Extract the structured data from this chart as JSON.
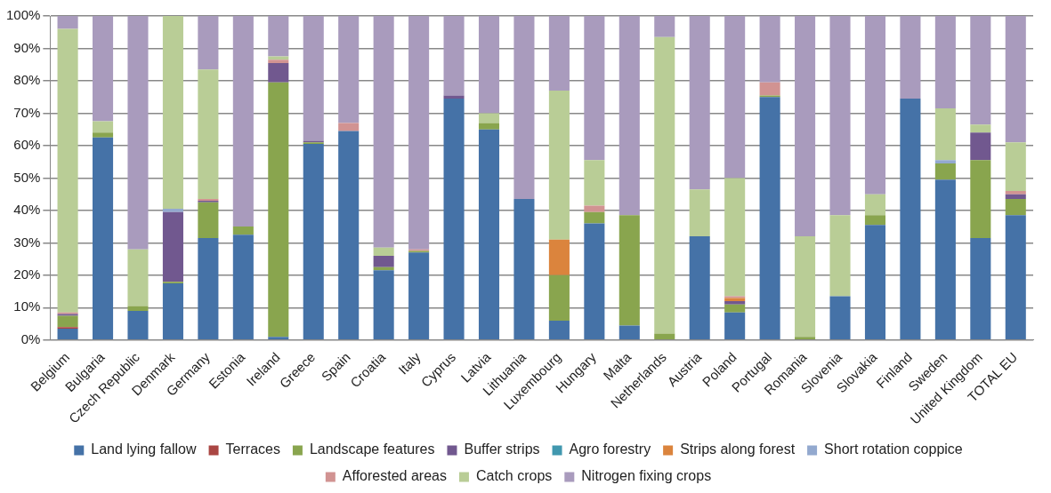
{
  "chart_data": {
    "type": "bar",
    "stacked": true,
    "grid": "y",
    "legend": "bottom",
    "categories": [
      "Belgium",
      "Bulgaria",
      "Czech Republic",
      "Denmark",
      "Germany",
      "Estonia",
      "Ireland",
      "Greece",
      "Spain",
      "Croatia",
      "Italy",
      "Cyprus",
      "Latvia",
      "Lithuania",
      "Luxembourg",
      "Hungary",
      "Malta",
      "Netherlands",
      "Austria",
      "Poland",
      "Portugal",
      "Romania",
      "Slovenia",
      "Slovakia",
      "Finland",
      "Sweden",
      "United Kingdom",
      "TOTAL EU"
    ],
    "ylim": [
      0,
      100
    ],
    "yticks": [
      {
        "value": 0,
        "label": "0%"
      },
      {
        "value": 10,
        "label": "10%"
      },
      {
        "value": 20,
        "label": "20%"
      },
      {
        "value": 30,
        "label": "30%"
      },
      {
        "value": 40,
        "label": "40%"
      },
      {
        "value": 50,
        "label": "50%"
      },
      {
        "value": 60,
        "label": "60%"
      },
      {
        "value": 70,
        "label": "70%"
      },
      {
        "value": 80,
        "label": "80%"
      },
      {
        "value": 90,
        "label": "90%"
      },
      {
        "value": 100,
        "label": "100%"
      }
    ],
    "series": [
      {
        "name": "Land lying fallow",
        "color": "#4572a7",
        "values": [
          3.5,
          62.5,
          9,
          17.5,
          31.5,
          32.5,
          1,
          60.5,
          64.5,
          21.5,
          27,
          74.5,
          65,
          43.5,
          6,
          36,
          4.5,
          0,
          32,
          8.5,
          75,
          0,
          13.5,
          35.5,
          74.5,
          49.5,
          31.5,
          38.5
        ]
      },
      {
        "name": "Terraces",
        "color": "#aa4643",
        "values": [
          0.5,
          0,
          0,
          0,
          0,
          0,
          0,
          0,
          0,
          0,
          0,
          0,
          0,
          0,
          0,
          0,
          0,
          0,
          0,
          0,
          0,
          0,
          0,
          0,
          0,
          0,
          0,
          0
        ]
      },
      {
        "name": "Landscape features",
        "color": "#89a54e",
        "values": [
          3.5,
          1.5,
          1.5,
          0.5,
          11,
          2.5,
          78.5,
          0.5,
          0,
          1,
          0.5,
          0,
          2,
          0,
          14,
          3.5,
          34,
          2,
          0,
          2.5,
          0.5,
          1,
          0,
          3,
          0,
          5,
          24,
          5
        ]
      },
      {
        "name": "Buffer strips",
        "color": "#71588f",
        "values": [
          0.5,
          0,
          0,
          21.5,
          0.5,
          0,
          6,
          0.5,
          0,
          3.5,
          0,
          1,
          0,
          0,
          0,
          0,
          0,
          0,
          0,
          1,
          0,
          0,
          0,
          0,
          0,
          0,
          8.5,
          1.5
        ]
      },
      {
        "name": "Agro forestry",
        "color": "#4198af",
        "values": [
          0,
          0,
          0,
          0,
          0,
          0,
          0,
          0,
          0,
          0,
          0,
          0,
          0,
          0,
          0,
          0,
          0,
          0,
          0,
          0,
          0,
          0,
          0,
          0,
          0,
          0,
          0,
          0
        ]
      },
      {
        "name": "Strips along forest",
        "color": "#db843d",
        "values": [
          0,
          0,
          0,
          0,
          0,
          0,
          0,
          0,
          0,
          0,
          0,
          0,
          0,
          0,
          11,
          0,
          0,
          0,
          0,
          1,
          0,
          0,
          0,
          0,
          0,
          0,
          0,
          0
        ]
      },
      {
        "name": "Short rotation coppice",
        "color": "#93a9cf",
        "values": [
          0,
          0,
          0,
          1,
          0,
          0,
          0,
          0,
          0,
          0,
          0,
          0,
          0,
          0,
          0,
          0,
          0,
          0,
          0,
          0,
          0,
          0,
          0,
          0,
          0,
          1,
          0,
          0
        ]
      },
      {
        "name": "Afforested areas",
        "color": "#d19392",
        "values": [
          0.5,
          0,
          0,
          0,
          0.5,
          0,
          1,
          0,
          2.5,
          0,
          0.5,
          0,
          0,
          0,
          0,
          2,
          0,
          0,
          0,
          0.5,
          4,
          0,
          0,
          0,
          0,
          0,
          0,
          1
        ]
      },
      {
        "name": "Catch crops",
        "color": "#b9cd96",
        "values": [
          87.5,
          3.5,
          17.5,
          59.5,
          40,
          0,
          1,
          0,
          0,
          2.5,
          0,
          0,
          3,
          0,
          46,
          14,
          0,
          91.5,
          14.5,
          36.5,
          0,
          31,
          25,
          6.5,
          0,
          16,
          2.5,
          15
        ]
      },
      {
        "name": "Nitrogen fixing crops",
        "color": "#a99bbd",
        "values": [
          4,
          32.5,
          72,
          0,
          16.5,
          65,
          12.5,
          38.5,
          33,
          71.5,
          72,
          24.5,
          30,
          56.5,
          23,
          44.5,
          61.5,
          6.5,
          53.5,
          50,
          20.5,
          68,
          61.5,
          55,
          25.5,
          28.5,
          33.5,
          39
        ]
      }
    ]
  }
}
